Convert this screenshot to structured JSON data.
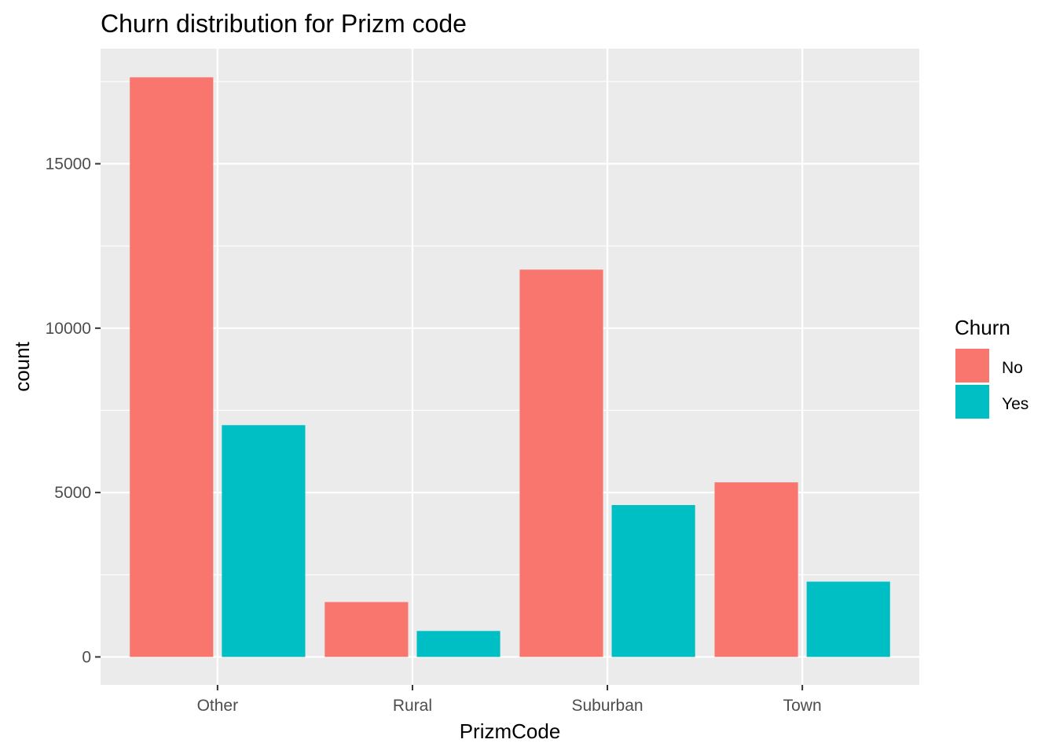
{
  "chart_data": {
    "type": "bar",
    "title": "Churn distribution for Prizm code",
    "xlabel": "PrizmCode",
    "ylabel": "count",
    "categories": [
      "Other",
      "Rural",
      "Suburban",
      "Town"
    ],
    "series": [
      {
        "name": "No",
        "color": "#F8766D",
        "values": [
          17630,
          1670,
          11780,
          5310
        ]
      },
      {
        "name": "Yes",
        "color": "#00BFC4",
        "values": [
          7050,
          790,
          4620,
          2290
        ]
      }
    ],
    "ylim": [
      -850,
      18500
    ],
    "yticks": [
      0,
      5000,
      10000,
      15000
    ],
    "ytick_labels": [
      "0",
      "5000",
      "10000",
      "15000"
    ],
    "grid": true,
    "legend": {
      "title": "Churn",
      "position": "right"
    }
  }
}
